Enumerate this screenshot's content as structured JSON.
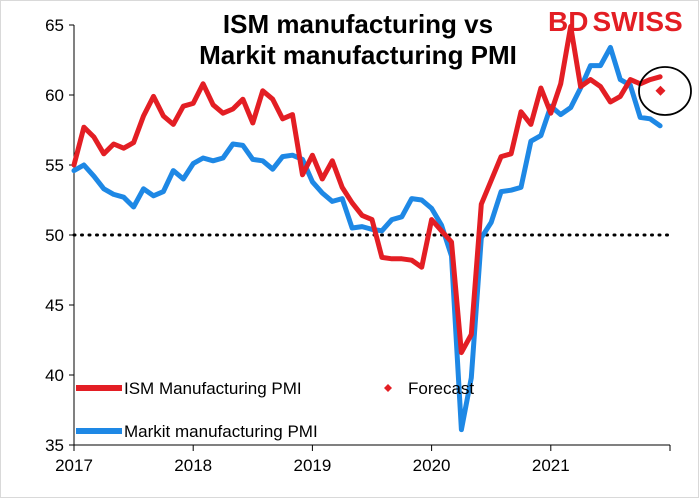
{
  "chart_data": {
    "type": "line",
    "title_lines": [
      "ISM manufacturing vs",
      "Markit manufacturing PMI"
    ],
    "brand": {
      "part1": "BD",
      "part2": "SWISS",
      "color1": "#e31e24",
      "color2": "#e31e24"
    },
    "xlabel": "",
    "ylabel": "",
    "ylim": [
      35,
      65
    ],
    "y_ticks": [
      35,
      40,
      45,
      50,
      55,
      60,
      65
    ],
    "x_range": [
      2017,
      2022
    ],
    "x_ticks": [
      2017,
      2018,
      2019,
      2020,
      2021
    ],
    "reference_line": {
      "value": 50,
      "style": "dotted",
      "color": "#000000"
    },
    "legend_placement": "bottom-left",
    "series": [
      {
        "name": "ISM Manufacturing PMI",
        "color": "#e31e24",
        "start": 2017.0,
        "step_months": 1,
        "values": [
          55.0,
          57.7,
          57.0,
          55.8,
          56.5,
          56.2,
          56.6,
          58.5,
          59.9,
          58.5,
          57.9,
          59.2,
          59.4,
          60.8,
          59.3,
          58.7,
          59.0,
          59.7,
          58.0,
          60.3,
          59.7,
          58.3,
          58.6,
          54.3,
          55.7,
          54.0,
          55.3,
          53.4,
          52.3,
          51.4,
          51.1,
          48.4,
          48.3,
          48.3,
          48.2,
          47.7,
          51.1,
          50.3,
          49.5,
          41.6,
          42.9,
          52.2,
          53.9,
          55.6,
          55.8,
          58.8,
          57.9,
          60.5,
          58.7,
          60.8,
          64.9,
          60.6,
          61.1,
          60.6,
          59.5,
          59.9,
          61.1,
          60.8,
          61.1,
          61.3
        ]
      },
      {
        "name": "Markit manufacturing PMI",
        "color": "#1e88e5",
        "start": 2017.0,
        "step_months": 1,
        "values": [
          54.6,
          55.0,
          54.2,
          53.3,
          52.9,
          52.7,
          52.0,
          53.3,
          52.8,
          53.1,
          54.6,
          54.0,
          55.1,
          55.5,
          55.3,
          55.5,
          56.5,
          56.4,
          55.4,
          55.3,
          54.7,
          55.6,
          55.7,
          55.4,
          53.8,
          53.0,
          52.4,
          52.6,
          50.5,
          50.6,
          50.4,
          50.3,
          51.1,
          51.3,
          52.6,
          52.5,
          51.9,
          50.7,
          48.5,
          36.1,
          39.8,
          49.8,
          50.9,
          53.1,
          53.2,
          53.4,
          56.7,
          57.1,
          59.2,
          58.6,
          59.1,
          60.5,
          62.1,
          62.1,
          63.4,
          61.1,
          60.7,
          58.4,
          58.3,
          57.8
        ]
      },
      {
        "name": "Forecast",
        "color": "#e31e24",
        "marker": "diamond",
        "points": [
          {
            "x": 2021.92,
            "y": 60.3
          }
        ]
      }
    ]
  }
}
